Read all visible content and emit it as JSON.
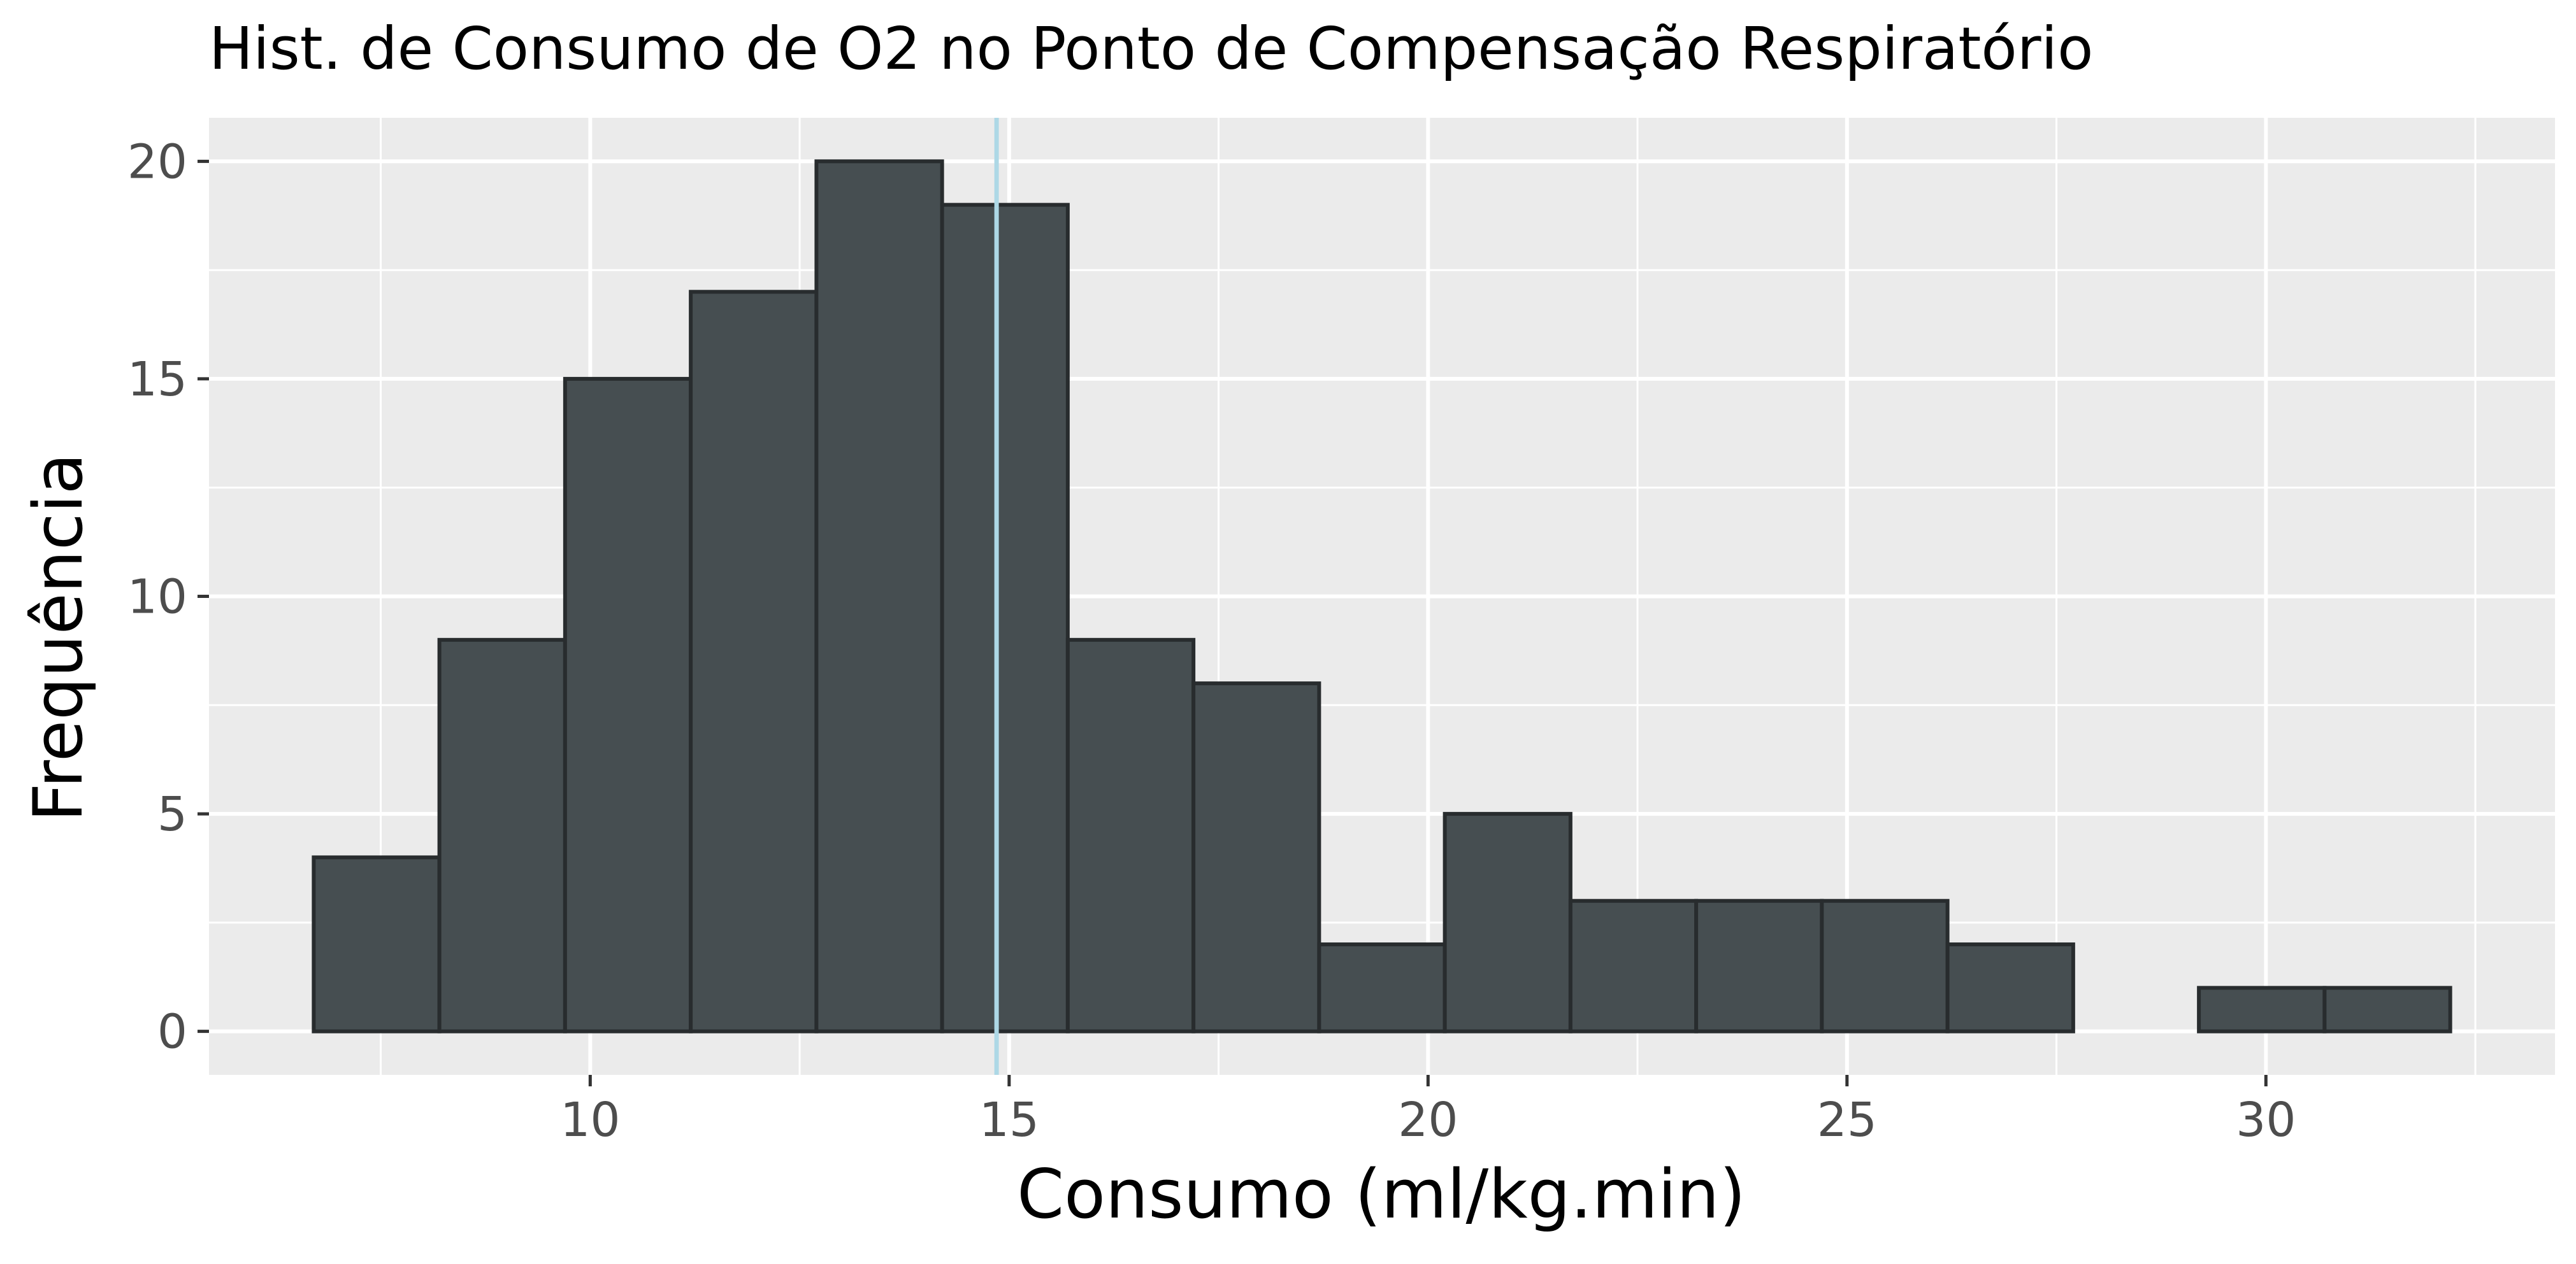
{
  "chart_data": {
    "type": "bar",
    "title": "Hist. de Consumo de O2 no Ponto de Compensação Respiratório",
    "xlabel": "Consumo (ml/kg.min)",
    "ylabel": "Frequência",
    "bins": [
      {
        "x0": 6.7,
        "x1": 8.2,
        "count": 4
      },
      {
        "x0": 8.2,
        "x1": 9.7,
        "count": 9
      },
      {
        "x0": 9.7,
        "x1": 11.2,
        "count": 15
      },
      {
        "x0": 11.2,
        "x1": 12.7,
        "count": 17
      },
      {
        "x0": 12.7,
        "x1": 14.2,
        "count": 20
      },
      {
        "x0": 14.2,
        "x1": 15.7,
        "count": 19
      },
      {
        "x0": 15.7,
        "x1": 17.2,
        "count": 9
      },
      {
        "x0": 17.2,
        "x1": 18.7,
        "count": 8
      },
      {
        "x0": 18.7,
        "x1": 20.2,
        "count": 2
      },
      {
        "x0": 20.2,
        "x1": 21.7,
        "count": 5
      },
      {
        "x0": 21.7,
        "x1": 23.2,
        "count": 3
      },
      {
        "x0": 23.2,
        "x1": 24.7,
        "count": 3
      },
      {
        "x0": 24.7,
        "x1": 26.2,
        "count": 3
      },
      {
        "x0": 26.2,
        "x1": 27.7,
        "count": 2
      },
      {
        "x0": 27.7,
        "x1": 29.2,
        "count": 0
      },
      {
        "x0": 29.2,
        "x1": 30.7,
        "count": 1
      },
      {
        "x0": 30.7,
        "x1": 32.2,
        "count": 1
      }
    ],
    "vline": {
      "x": 14.85,
      "color": "#add8e6"
    },
    "xlim": [
      5.45,
      33.45
    ],
    "ylim": [
      -1,
      21
    ],
    "xticks": [
      10,
      15,
      20,
      25,
      30
    ],
    "yticks": [
      0,
      5,
      10,
      15,
      20
    ],
    "bar_fill": "#464e51",
    "bar_stroke": "#282c2e",
    "panel_bg": "#ebebeb",
    "grid_color": "#ffffff",
    "grid": true
  }
}
